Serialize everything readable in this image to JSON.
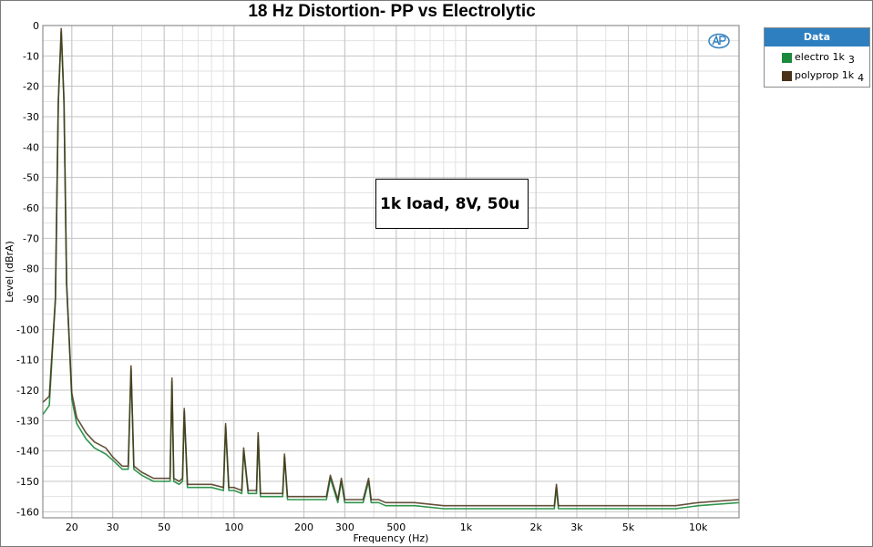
{
  "chart_data": {
    "type": "line",
    "title": "18 Hz Distortion- PP vs Electrolytic",
    "xlabel": "Frequency (Hz)",
    "ylabel": "Level (dBrA)",
    "xscale": "log",
    "xlim": [
      15,
      15000
    ],
    "ylim": [
      -162,
      0
    ],
    "xticks": [
      20,
      30,
      50,
      100,
      200,
      300,
      500,
      1000,
      2000,
      3000,
      5000,
      10000
    ],
    "xtick_labels": [
      "20",
      "30",
      "50",
      "100",
      "200",
      "300",
      "500",
      "1k",
      "2k",
      "3k",
      "5k",
      "10k"
    ],
    "yticks": [
      0,
      -10,
      -20,
      -30,
      -40,
      -50,
      -60,
      -70,
      -80,
      -90,
      -100,
      -110,
      -120,
      -130,
      -140,
      -150,
      -160
    ],
    "ytick_labels": [
      "0",
      "-10",
      "-20",
      "-30",
      "-40",
      "-50",
      "-60",
      "-70",
      "-80",
      "-90",
      "-100",
      "-110",
      "-120",
      "-130",
      "-140",
      "-150",
      "-160"
    ],
    "grid": true,
    "legend": {
      "title": "Data",
      "position": "right"
    },
    "annotation": "1k load, 8V, 50u",
    "series": [
      {
        "name": "electro 1k",
        "index": "3",
        "color": "#1a8a3a",
        "x": [
          15,
          16,
          17,
          17.5,
          18,
          18.5,
          19,
          20,
          21,
          23,
          25,
          28,
          30,
          33,
          35,
          36,
          37,
          40,
          45,
          50,
          53,
          54,
          55,
          58,
          60,
          61,
          63,
          70,
          80,
          90,
          92,
          95,
          100,
          108,
          110,
          115,
          125,
          127,
          130,
          150,
          162,
          165,
          170,
          190,
          200,
          235,
          250,
          260,
          280,
          290,
          300,
          330,
          360,
          380,
          390,
          420,
          450,
          500,
          600,
          800,
          1000,
          1500,
          2000,
          2400,
          2450,
          2500,
          3000,
          5000,
          8000,
          10000,
          15000
        ],
        "y": [
          -128,
          -125,
          -90,
          -25,
          -2,
          -25,
          -85,
          -123,
          -131,
          -136,
          -139,
          -141,
          -143,
          -146,
          -146,
          -113,
          -146,
          -148,
          -150,
          -150,
          -150,
          -117,
          -150,
          -151,
          -150,
          -127,
          -152,
          -152,
          -152,
          -153,
          -132,
          -153,
          -153,
          -154,
          -140,
          -154,
          -154,
          -135,
          -155,
          -155,
          -155,
          -142,
          -156,
          -156,
          -156,
          -156,
          -156,
          -149,
          -157,
          -150,
          -157,
          -157,
          -157,
          -150,
          -157,
          -157,
          -158,
          -158,
          -158,
          -159,
          -159,
          -159,
          -159,
          -159,
          -152,
          -159,
          -159,
          -159,
          -159,
          -158,
          -157
        ]
      },
      {
        "name": "polyprop 1k",
        "index": "4",
        "color": "#4a3218",
        "x": [
          15,
          16,
          17,
          17.5,
          18,
          18.5,
          19,
          20,
          21,
          23,
          25,
          28,
          30,
          33,
          35,
          36,
          37,
          40,
          45,
          50,
          53,
          54,
          55,
          58,
          60,
          61,
          63,
          70,
          80,
          90,
          92,
          95,
          100,
          108,
          110,
          115,
          125,
          127,
          130,
          150,
          162,
          165,
          170,
          190,
          200,
          235,
          250,
          260,
          280,
          290,
          300,
          330,
          360,
          380,
          390,
          420,
          450,
          500,
          600,
          800,
          1000,
          1500,
          2000,
          2400,
          2450,
          2500,
          3000,
          5000,
          8000,
          10000,
          15000
        ],
        "y": [
          -124,
          -122,
          -90,
          -25,
          -1,
          -25,
          -85,
          -121,
          -129,
          -134,
          -137,
          -139,
          -142,
          -145,
          -145,
          -112,
          -145,
          -147,
          -149,
          -149,
          -149,
          -116,
          -149,
          -150,
          -149,
          -126,
          -151,
          -151,
          -151,
          -152,
          -131,
          -152,
          -152,
          -153,
          -139,
          -153,
          -153,
          -134,
          -154,
          -154,
          -154,
          -141,
          -155,
          -155,
          -155,
          -155,
          -155,
          -148,
          -156,
          -149,
          -156,
          -156,
          -156,
          -149,
          -156,
          -156,
          -157,
          -157,
          -157,
          -158,
          -158,
          -158,
          -158,
          -158,
          -151,
          -158,
          -158,
          -158,
          -158,
          -157,
          -156
        ]
      }
    ]
  },
  "legend_title": "Data",
  "legend_items": [
    {
      "label": "electro 1k",
      "index": "3",
      "color": "#1a8a3a"
    },
    {
      "label": "polyprop 1k",
      "index": "4",
      "color": "#4a3218"
    }
  ],
  "logo_text": "AP"
}
